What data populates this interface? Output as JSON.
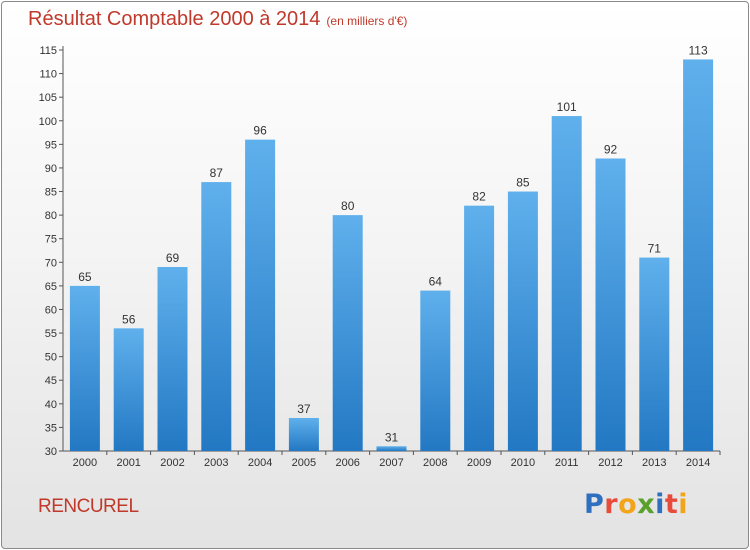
{
  "title": "Résultat Comptable 2000 à 2014",
  "subtitle": "(en milliers d'€)",
  "commune": "RENCUREL",
  "logo": {
    "letters": [
      "P",
      "r",
      "o",
      "x",
      "i",
      "t",
      "i"
    ],
    "colors": [
      "#2f6fc0",
      "#e84b3c",
      "#f2a51a",
      "#5aa02c",
      "#2f6fc0",
      "#e84b3c",
      "#f2a51a"
    ]
  },
  "colors": {
    "bar_top": "#5fb0ec",
    "bar_bottom": "#2378c3",
    "title": "#c0392b"
  },
  "chart_data": {
    "type": "bar",
    "categories": [
      "2000",
      "2001",
      "2002",
      "2003",
      "2004",
      "2005",
      "2006",
      "2007",
      "2008",
      "2009",
      "2010",
      "2011",
      "2012",
      "2013",
      "2014"
    ],
    "values": [
      65,
      56,
      69,
      87,
      96,
      37,
      80,
      31,
      64,
      82,
      85,
      101,
      92,
      71,
      113
    ],
    "ylim": [
      30,
      115
    ],
    "yticks": [
      30,
      35,
      40,
      45,
      50,
      55,
      60,
      65,
      70,
      75,
      80,
      85,
      90,
      95,
      100,
      105,
      110,
      115
    ],
    "grid": false
  }
}
